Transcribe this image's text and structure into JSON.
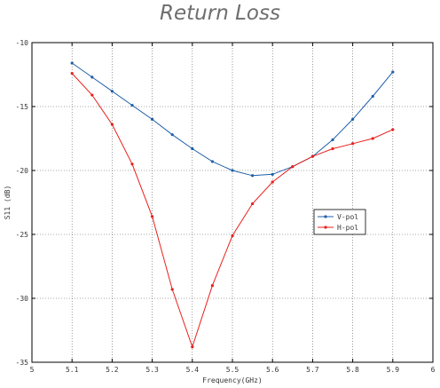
{
  "chart_data": {
    "type": "line",
    "title": "Return Loss",
    "xlabel": "Frequency(GHz)",
    "ylabel": "S11 (dB)",
    "xlim": [
      5,
      6
    ],
    "ylim": [
      -35,
      -10
    ],
    "x_ticks": [
      5,
      5.1,
      5.2,
      5.3,
      5.4,
      5.5,
      5.6,
      5.7,
      5.8,
      5.9,
      6
    ],
    "x_tick_labels": [
      "5",
      "5.1",
      "5.2",
      "5.3",
      "5.4",
      "5.5",
      "5.6",
      "5.7",
      "5.8",
      "5.9",
      "6"
    ],
    "y_ticks": [
      -10,
      -15,
      -20,
      -25,
      -30,
      -35
    ],
    "y_tick_labels": [
      "-10",
      "-15",
      "-20",
      "-25",
      "-30",
      "-35"
    ],
    "grid": true,
    "legend_position": "center-right",
    "x": [
      5.1,
      5.15,
      5.2,
      5.25,
      5.3,
      5.35,
      5.4,
      5.45,
      5.5,
      5.55,
      5.6,
      5.65,
      5.7,
      5.75,
      5.8,
      5.85,
      5.9
    ],
    "series": [
      {
        "name": "V-pol",
        "color": "#1f5fa8",
        "values": [
          -11.6,
          -12.7,
          -13.8,
          -14.9,
          -16.0,
          -17.2,
          -18.3,
          -19.3,
          -20.0,
          -20.4,
          -20.3,
          -19.7,
          -18.9,
          -17.6,
          -16.0,
          -14.2,
          -12.3
        ]
      },
      {
        "name": "H-pol",
        "color": "#e8201c",
        "values": [
          -12.4,
          -14.1,
          -16.4,
          -19.5,
          -23.6,
          -29.3,
          -33.8,
          -29.0,
          -25.1,
          -22.6,
          -20.9,
          -19.7,
          -18.9,
          -18.3,
          -17.9,
          -17.5,
          -16.8
        ]
      }
    ]
  }
}
